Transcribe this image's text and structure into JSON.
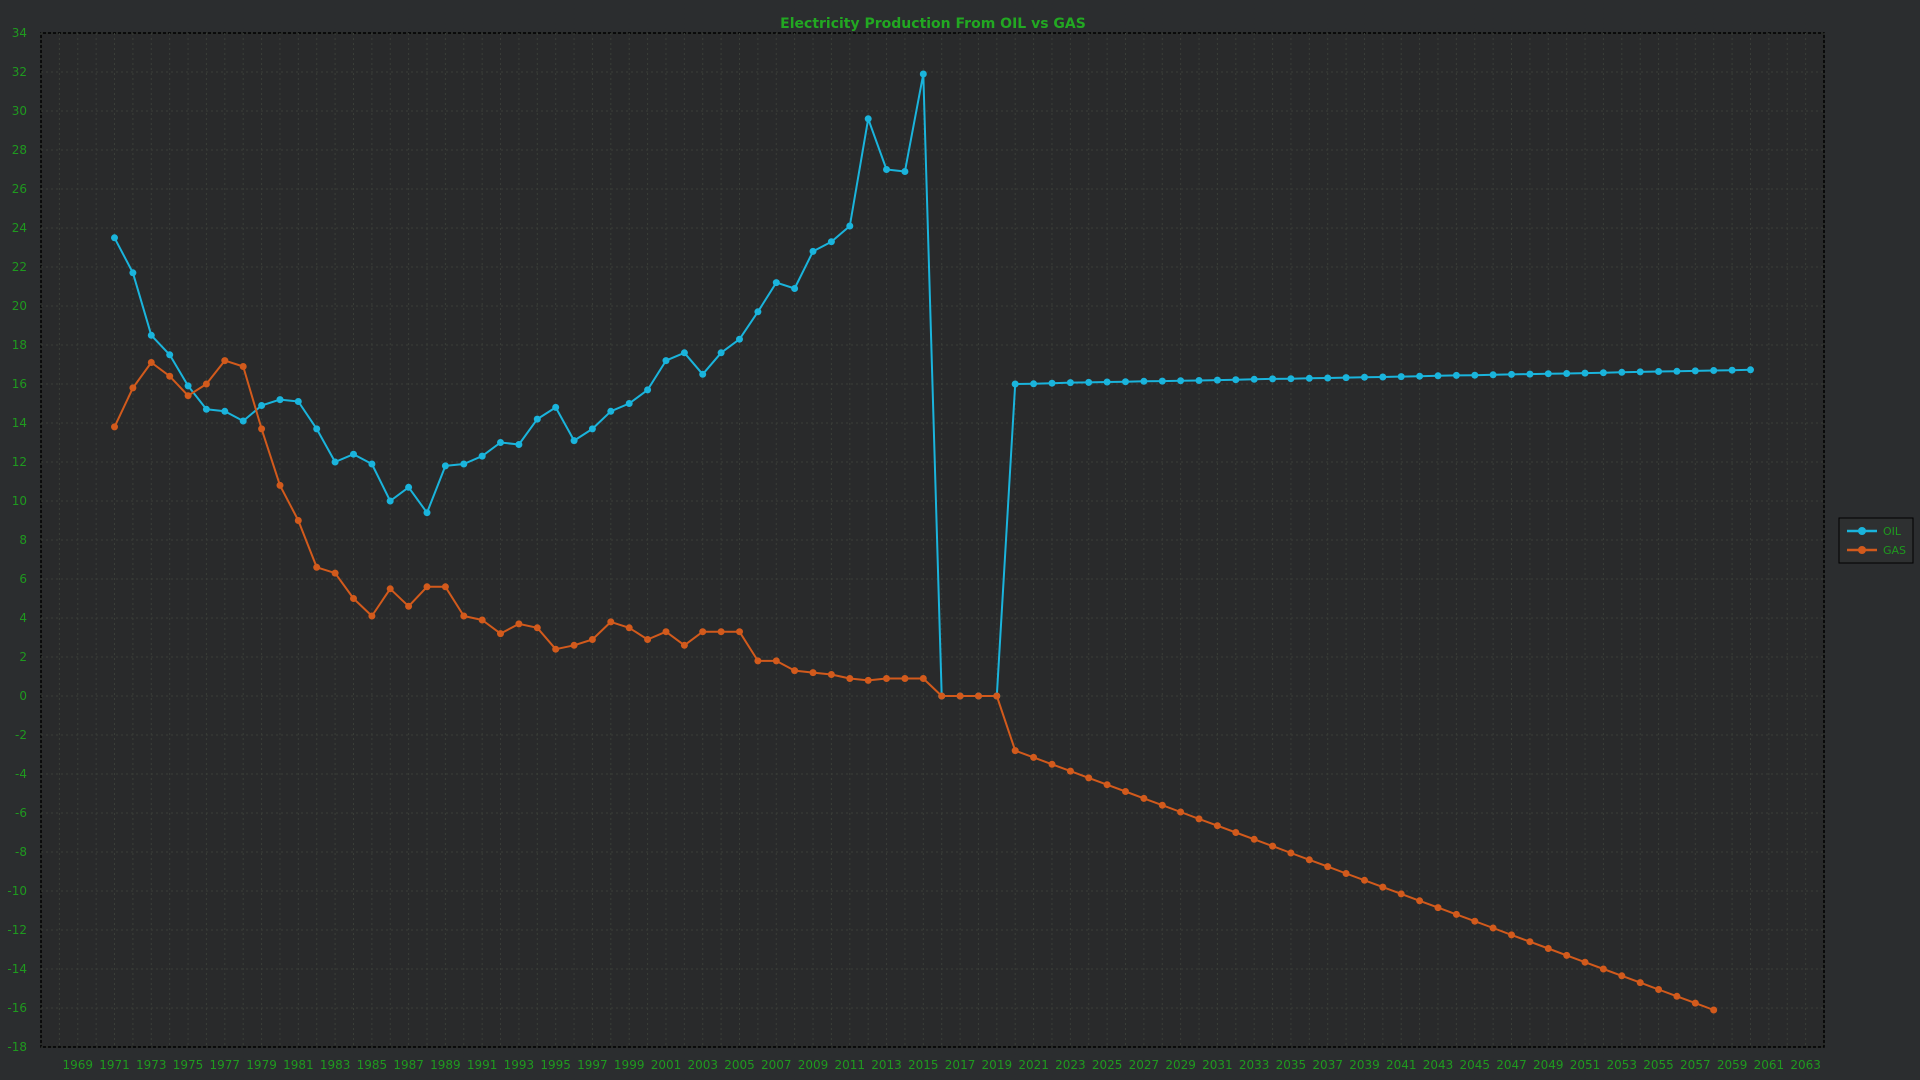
{
  "colors": {
    "background": "#2b2d2f",
    "plot_background": "#292a2b",
    "axis_text": "#1f9a1f",
    "title": "#22a822",
    "grid": "#3a3e38",
    "oil": "#1ab4dc",
    "gas": "#d25a1c"
  },
  "chart_data": {
    "type": "line",
    "title": "Electricity Production From OIL vs GAS",
    "xlabel": "",
    "ylabel": "",
    "xlim": [
      1967,
      2064
    ],
    "ylim": [
      -18,
      34
    ],
    "x_ticks": [
      1969,
      1971,
      1973,
      1975,
      1977,
      1979,
      1981,
      1983,
      1985,
      1987,
      1989,
      1991,
      1993,
      1995,
      1997,
      1999,
      2001,
      2003,
      2005,
      2007,
      2009,
      2011,
      2013,
      2015,
      2017,
      2019,
      2021,
      2023,
      2025,
      2027,
      2029,
      2031,
      2033,
      2035,
      2037,
      2039,
      2041,
      2043,
      2045,
      2047,
      2049,
      2051,
      2053,
      2055,
      2057,
      2059,
      2061,
      2063
    ],
    "y_ticks": [
      34,
      32,
      30,
      28,
      26,
      24,
      22,
      20,
      18,
      16,
      14,
      12,
      10,
      8,
      6,
      4,
      2,
      0,
      -2,
      -4,
      -6,
      -8,
      -10,
      -12,
      -14,
      -16,
      -18
    ],
    "grid": true,
    "legend_position": "right",
    "x_start": 1971,
    "series": [
      {
        "name": "OIL",
        "color": "#1ab4dc",
        "values": [
          23.5,
          21.7,
          18.5,
          17.5,
          15.9,
          14.7,
          14.6,
          14.1,
          14.9,
          15.2,
          15.1,
          13.7,
          12.0,
          12.4,
          11.9,
          10.0,
          10.7,
          9.4,
          11.8,
          11.9,
          12.3,
          13.0,
          12.9,
          14.2,
          14.8,
          13.1,
          13.7,
          14.6,
          15.0,
          15.7,
          17.2,
          17.6,
          16.5,
          17.6,
          18.3,
          19.7,
          21.2,
          20.9,
          22.8,
          23.3,
          24.1,
          29.6,
          27.0,
          26.9,
          31.9,
          0,
          0,
          0,
          0,
          16.0,
          16.01,
          16.04,
          16.07,
          16.08,
          16.1,
          16.12,
          16.14,
          16.15,
          16.17,
          16.18,
          16.2,
          16.22,
          16.24,
          16.26,
          16.27,
          16.29,
          16.31,
          16.33,
          16.35,
          16.36,
          16.38,
          16.4,
          16.42,
          16.44,
          16.45,
          16.47,
          16.49,
          16.51,
          16.53,
          16.54,
          16.56,
          16.58,
          16.6,
          16.62,
          16.64,
          16.65,
          16.67,
          16.69,
          16.71,
          16.73
        ]
      },
      {
        "name": "GAS",
        "color": "#d25a1c",
        "values": [
          13.8,
          15.8,
          17.1,
          16.4,
          15.4,
          16.0,
          17.2,
          16.9,
          13.7,
          10.8,
          9.0,
          6.6,
          6.3,
          5.0,
          4.1,
          5.5,
          4.6,
          5.6,
          5.6,
          4.1,
          3.9,
          3.2,
          3.7,
          3.5,
          2.4,
          2.6,
          2.9,
          3.8,
          3.5,
          2.9,
          3.3,
          2.6,
          3.3,
          3.3,
          3.3,
          1.8,
          1.8,
          1.3,
          1.2,
          1.1,
          0.9,
          0.8,
          0.9,
          0.9,
          0.9,
          0,
          0,
          0,
          0,
          -2.8,
          -3.15,
          -3.5,
          -3.85,
          -4.2,
          -4.55,
          -4.9,
          -5.25,
          -5.6,
          -5.95,
          -6.3,
          -6.65,
          -7.0,
          -7.35,
          -7.7,
          -8.05,
          -8.4,
          -8.75,
          -9.1,
          -9.45,
          -9.8,
          -10.15,
          -10.5,
          -10.85,
          -11.2,
          -11.55,
          -11.9,
          -12.25,
          -12.6,
          -12.95,
          -13.3,
          -13.65,
          -14.0,
          -14.35,
          -14.7,
          -15.05,
          -15.4,
          -15.75,
          -16.1
        ]
      }
    ]
  }
}
